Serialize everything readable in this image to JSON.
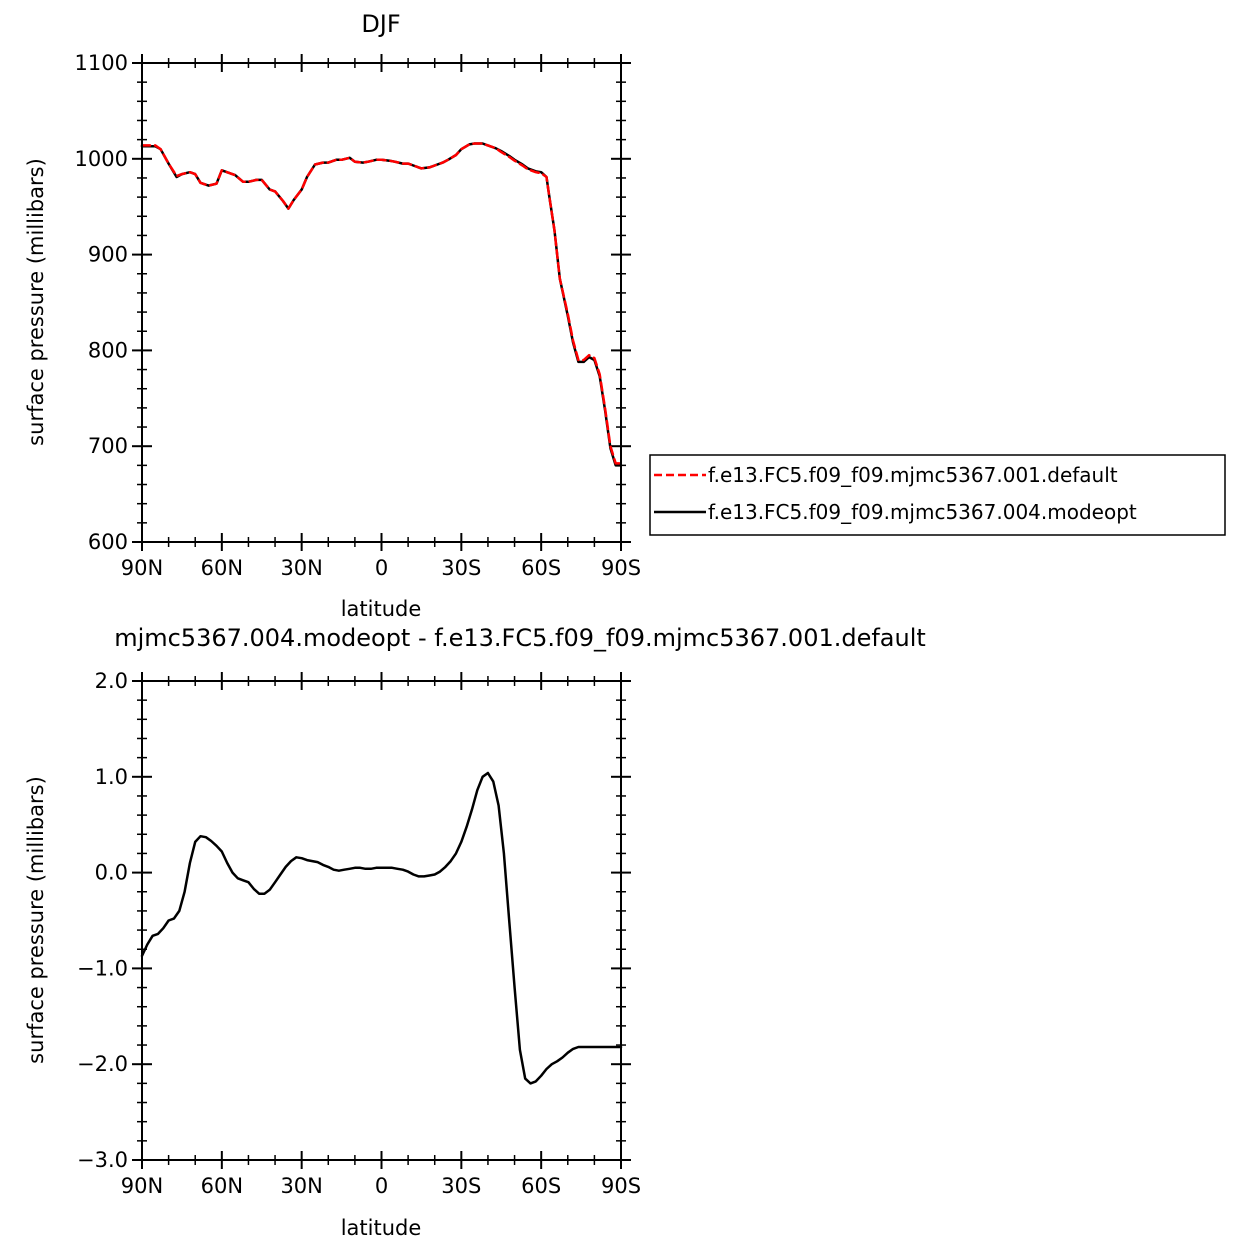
{
  "chart_data": [
    {
      "type": "line",
      "title": "DJF",
      "xlabel": "latitude",
      "ylabel": "surface pressure (millibars)",
      "xlim": [
        90,
        -90
      ],
      "ylim": [
        600,
        1100
      ],
      "x_ticks": [
        {
          "value": 90,
          "label": "90N"
        },
        {
          "value": 60,
          "label": "60N"
        },
        {
          "value": 30,
          "label": "30N"
        },
        {
          "value": 0,
          "label": "0"
        },
        {
          "value": -30,
          "label": "30S"
        },
        {
          "value": -60,
          "label": "60S"
        },
        {
          "value": -90,
          "label": "90S"
        }
      ],
      "y_ticks": [
        {
          "value": 600,
          "label": "600"
        },
        {
          "value": 700,
          "label": "700"
        },
        {
          "value": 800,
          "label": "800"
        },
        {
          "value": 900,
          "label": "900"
        },
        {
          "value": 1000,
          "label": "1000"
        },
        {
          "value": 1100,
          "label": "1100"
        }
      ],
      "legend_position": "right",
      "series": [
        {
          "name": "f.e13.FC5.f09_f09.mjmc5367.001.default",
          "color": "#ff0000",
          "style": "dashed",
          "x": [
            90,
            85,
            83,
            80,
            77,
            75,
            72,
            70,
            68,
            65,
            62,
            60,
            57,
            55,
            52,
            50,
            47,
            45,
            42,
            40,
            37,
            35,
            33,
            30,
            28,
            25,
            22,
            20,
            17,
            15,
            12,
            10,
            7,
            5,
            2,
            0,
            -3,
            -5,
            -8,
            -10,
            -12,
            -15,
            -18,
            -20,
            -23,
            -25,
            -28,
            -30,
            -33,
            -35,
            -38,
            -40,
            -43,
            -45,
            -48,
            -50,
            -53,
            -55,
            -58,
            -60,
            -62,
            -63,
            -65,
            -67,
            -70,
            -72,
            -74,
            -76,
            -78,
            -80,
            -82,
            -84,
            -86,
            -88,
            -90
          ],
          "values": [
            1014,
            1014,
            1010,
            995,
            982,
            984,
            986,
            984,
            975,
            972,
            974,
            988,
            985,
            983,
            976,
            976,
            978,
            978,
            968,
            966,
            956,
            948,
            957,
            968,
            981,
            994,
            996,
            996,
            999,
            999,
            1001,
            997,
            996,
            997,
            999,
            999,
            998,
            997,
            995,
            995,
            993,
            990,
            991,
            993,
            996,
            999,
            1004,
            1010,
            1015,
            1016,
            1016,
            1014,
            1011,
            1007,
            1002,
            998,
            993,
            989,
            986,
            985,
            981,
            962,
            925,
            875,
            838,
            810,
            790,
            790,
            795,
            792,
            775,
            740,
            700,
            682,
            682
          ]
        },
        {
          "name": "f.e13.FC5.f09_f09.mjmc5367.004.modeopt",
          "color": "#000000",
          "style": "solid",
          "x": [
            90,
            85,
            83,
            80,
            77,
            75,
            72,
            70,
            68,
            65,
            62,
            60,
            57,
            55,
            52,
            50,
            47,
            45,
            42,
            40,
            37,
            35,
            33,
            30,
            28,
            25,
            22,
            20,
            17,
            15,
            12,
            10,
            7,
            5,
            2,
            0,
            -3,
            -5,
            -8,
            -10,
            -12,
            -15,
            -18,
            -20,
            -23,
            -25,
            -28,
            -30,
            -33,
            -35,
            -38,
            -40,
            -43,
            -45,
            -48,
            -50,
            -53,
            -55,
            -58,
            -60,
            -62,
            -63,
            -65,
            -67,
            -70,
            -72,
            -74,
            -76,
            -78,
            -80,
            -82,
            -84,
            -86,
            -88,
            -90
          ],
          "values": [
            1013,
            1013,
            1010,
            995,
            981,
            984,
            986,
            984,
            975,
            972,
            974,
            988,
            985,
            983,
            976,
            976,
            978,
            978,
            968,
            966,
            956,
            948,
            957,
            968,
            981,
            994,
            996,
            996,
            999,
            999,
            1001,
            997,
            996,
            997,
            999,
            999,
            998,
            997,
            995,
            995,
            993,
            990,
            991,
            993,
            996,
            999,
            1004,
            1010,
            1015,
            1016,
            1016,
            1014,
            1011,
            1008,
            1003,
            999,
            994,
            990,
            987,
            986,
            981,
            962,
            925,
            875,
            836,
            808,
            788,
            788,
            793,
            790,
            773,
            738,
            698,
            680,
            680
          ]
        }
      ]
    },
    {
      "type": "line",
      "title": "mjmc5367.004.modeopt - f.e13.FC5.f09_f09.mjmc5367.001.default",
      "xlabel": "latitude",
      "ylabel": "surface pressure (millibars)",
      "xlim": [
        90,
        -90
      ],
      "ylim": [
        -3.0,
        2.0
      ],
      "x_ticks": [
        {
          "value": 90,
          "label": "90N"
        },
        {
          "value": 60,
          "label": "60N"
        },
        {
          "value": 30,
          "label": "30N"
        },
        {
          "value": 0,
          "label": "0"
        },
        {
          "value": -30,
          "label": "30S"
        },
        {
          "value": -60,
          "label": "60S"
        },
        {
          "value": -90,
          "label": "90S"
        }
      ],
      "y_ticks": [
        {
          "value": -3.0,
          "label": "−3.0"
        },
        {
          "value": -2.0,
          "label": "−2.0"
        },
        {
          "value": -1.0,
          "label": "−1.0"
        },
        {
          "value": 0.0,
          "label": "0.0"
        },
        {
          "value": 1.0,
          "label": "1.0"
        },
        {
          "value": 2.0,
          "label": "2.0"
        }
      ],
      "series": [
        {
          "color": "#000000",
          "style": "solid",
          "x": [
            90,
            88,
            86,
            84,
            82,
            80,
            78,
            76,
            74,
            72,
            70,
            68,
            66,
            64,
            62,
            60,
            58,
            56,
            54,
            52,
            50,
            48,
            46,
            44,
            42,
            40,
            38,
            36,
            34,
            32,
            30,
            28,
            26,
            24,
            22,
            20,
            18,
            16,
            14,
            12,
            10,
            8,
            6,
            4,
            2,
            0,
            -2,
            -4,
            -6,
            -8,
            -10,
            -12,
            -14,
            -16,
            -18,
            -20,
            -22,
            -24,
            -26,
            -28,
            -30,
            -32,
            -34,
            -36,
            -38,
            -40,
            -42,
            -44,
            -46,
            -48,
            -50,
            -52,
            -54,
            -56,
            -58,
            -60,
            -62,
            -64,
            -66,
            -68,
            -70,
            -72,
            -74,
            -76,
            -78,
            -80,
            -82,
            -84,
            -86,
            -88,
            -90
          ],
          "values": [
            -0.87,
            -0.75,
            -0.66,
            -0.64,
            -0.58,
            -0.5,
            -0.48,
            -0.4,
            -0.2,
            0.1,
            0.32,
            0.38,
            0.37,
            0.33,
            0.28,
            0.22,
            0.1,
            0.0,
            -0.06,
            -0.08,
            -0.1,
            -0.17,
            -0.22,
            -0.22,
            -0.18,
            -0.1,
            -0.02,
            0.06,
            0.12,
            0.16,
            0.15,
            0.13,
            0.12,
            0.11,
            0.08,
            0.06,
            0.03,
            0.02,
            0.03,
            0.04,
            0.05,
            0.05,
            0.04,
            0.04,
            0.05,
            0.05,
            0.05,
            0.05,
            0.04,
            0.03,
            0.01,
            -0.02,
            -0.04,
            -0.04,
            -0.03,
            -0.02,
            0.01,
            0.06,
            0.12,
            0.2,
            0.32,
            0.48,
            0.66,
            0.86,
            1.0,
            1.04,
            0.95,
            0.7,
            0.2,
            -0.5,
            -1.2,
            -1.85,
            -2.15,
            -2.2,
            -2.18,
            -2.12,
            -2.05,
            -2.0,
            -1.97,
            -1.93,
            -1.88,
            -1.84,
            -1.82,
            -1.82,
            -1.82,
            -1.82,
            -1.82,
            -1.82,
            -1.82,
            -1.82,
            -1.82
          ]
        }
      ]
    }
  ]
}
